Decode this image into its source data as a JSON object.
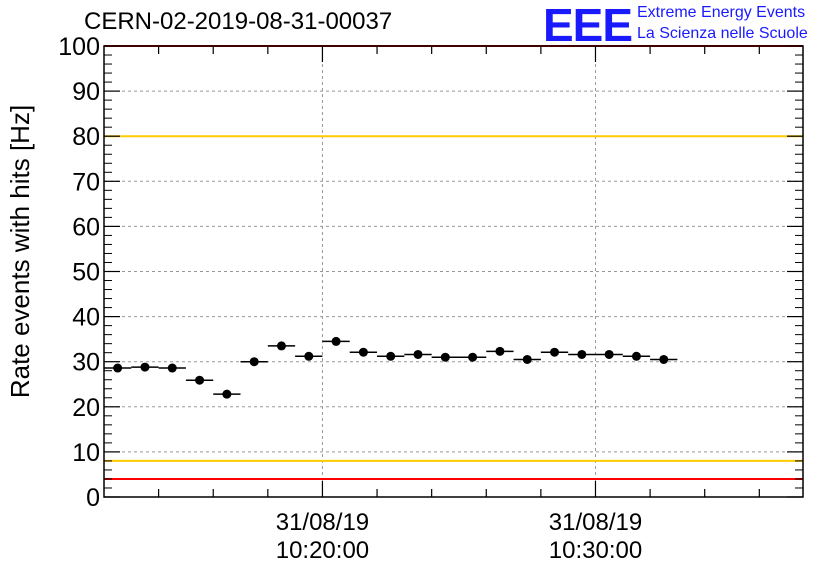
{
  "title": "CERN-02-2019-08-31-00037",
  "logo": {
    "mark": "EEE",
    "line1": "Extreme Energy Events",
    "line2": "La Scienza nelle Scuole",
    "color": "#1a1aff"
  },
  "chart_data": {
    "type": "scatter",
    "title": "CERN-02-2019-08-31-00037",
    "xlabel": "",
    "ylabel": "Rate events with hits [Hz]",
    "x_unit": "minutes after 31/08/19 10:12:00",
    "xlim": [
      0,
      25.6
    ],
    "ylim": [
      0,
      100
    ],
    "grid": true,
    "y_ticks": [
      0,
      10,
      20,
      30,
      40,
      50,
      60,
      70,
      80,
      90,
      100
    ],
    "x_ticks": [
      {
        "x": 8,
        "date": "31/08/19",
        "time": "10:20:00"
      },
      {
        "x": 18,
        "date": "31/08/19",
        "time": "10:30:00"
      }
    ],
    "bin_width": 1,
    "points": [
      {
        "x": 0.5,
        "y": 28.6
      },
      {
        "x": 1.5,
        "y": 28.8
      },
      {
        "x": 2.5,
        "y": 28.6
      },
      {
        "x": 3.5,
        "y": 25.9
      },
      {
        "x": 4.5,
        "y": 22.8
      },
      {
        "x": 5.5,
        "y": 30.0
      },
      {
        "x": 6.5,
        "y": 33.5
      },
      {
        "x": 7.5,
        "y": 31.2
      },
      {
        "x": 8.5,
        "y": 34.5
      },
      {
        "x": 9.5,
        "y": 32.1
      },
      {
        "x": 10.5,
        "y": 31.2
      },
      {
        "x": 11.5,
        "y": 31.6
      },
      {
        "x": 12.5,
        "y": 31.0
      },
      {
        "x": 13.5,
        "y": 31.0
      },
      {
        "x": 14.5,
        "y": 32.3
      },
      {
        "x": 15.5,
        "y": 30.5
      },
      {
        "x": 16.5,
        "y": 32.1
      },
      {
        "x": 17.5,
        "y": 31.6
      },
      {
        "x": 18.5,
        "y": 31.6
      },
      {
        "x": 19.5,
        "y": 31.2
      },
      {
        "x": 20.5,
        "y": 30.5
      }
    ],
    "reference_lines": [
      {
        "y": 100,
        "color": "#ff0000"
      },
      {
        "y": 80,
        "color": "#ffcc00"
      },
      {
        "y": 8,
        "color": "#ffcc00"
      },
      {
        "y": 4,
        "color": "#ff0000"
      }
    ]
  }
}
